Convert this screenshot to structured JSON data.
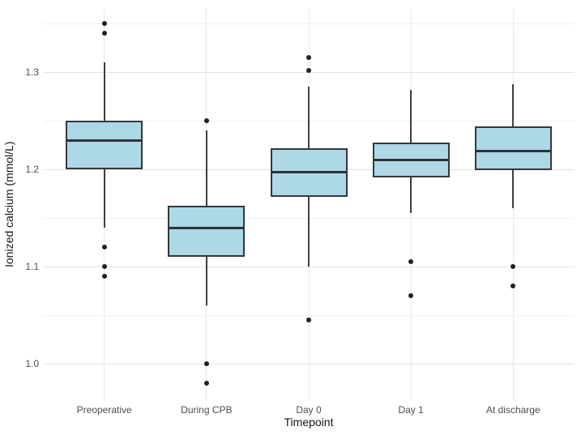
{
  "figure": {
    "background": "#ffffff"
  },
  "chart_data": {
    "type": "boxplot",
    "title": "",
    "xlabel": "Timepoint",
    "ylabel": "Ionized calcium (mmol/L)",
    "categories": [
      "Preoperative",
      "During CPB",
      "Day 0",
      "Day 1",
      "At discharge"
    ],
    "ylim": [
      0.962,
      1.366
    ],
    "yticks_major": [
      1.0,
      1.1,
      1.2,
      1.3
    ],
    "ytick_labels": [
      "1.0",
      "1.1",
      "1.2",
      "1.3"
    ],
    "yticks_minor": [
      1.05,
      1.15,
      1.25,
      1.35
    ],
    "grid": "horizontal major+minor, vertical major per category; no axis lines (minimal theme)",
    "legend": "none",
    "series": [
      {
        "name": "Preoperative",
        "whisker_low": 1.14,
        "q1": 1.2,
        "median": 1.23,
        "q3": 1.25,
        "whisker_high": 1.31,
        "outliers": [
          1.35,
          1.34,
          1.12,
          1.1,
          1.09
        ]
      },
      {
        "name": "During CPB",
        "whisker_low": 1.06,
        "q1": 1.11,
        "median": 1.14,
        "q3": 1.163,
        "whisker_high": 1.24,
        "outliers": [
          1.25,
          1.0,
          0.98
        ]
      },
      {
        "name": "Day 0",
        "whisker_low": 1.1,
        "q1": 1.172,
        "median": 1.197,
        "q3": 1.222,
        "whisker_high": 1.285,
        "outliers": [
          1.315,
          1.302,
          1.045
        ]
      },
      {
        "name": "Day 1",
        "whisker_low": 1.155,
        "q1": 1.192,
        "median": 1.21,
        "q3": 1.228,
        "whisker_high": 1.282,
        "outliers": [
          1.105,
          1.07
        ]
      },
      {
        "name": "At discharge",
        "whisker_low": 1.16,
        "q1": 1.199,
        "median": 1.219,
        "q3": 1.244,
        "whisker_high": 1.288,
        "outliers": [
          1.1,
          1.08
        ]
      }
    ],
    "style": {
      "box_fill": "#add8e6",
      "box_stroke": "#33383d",
      "median_color": "#2d3338",
      "whisker_color": "#3f3f3f",
      "outlier_color": "#202020",
      "grid_major": "#e3e3e3",
      "grid_minor": "#f1f1f1",
      "tick_label_color": "#4d4d4d",
      "axis_title_color": "#141414"
    }
  }
}
